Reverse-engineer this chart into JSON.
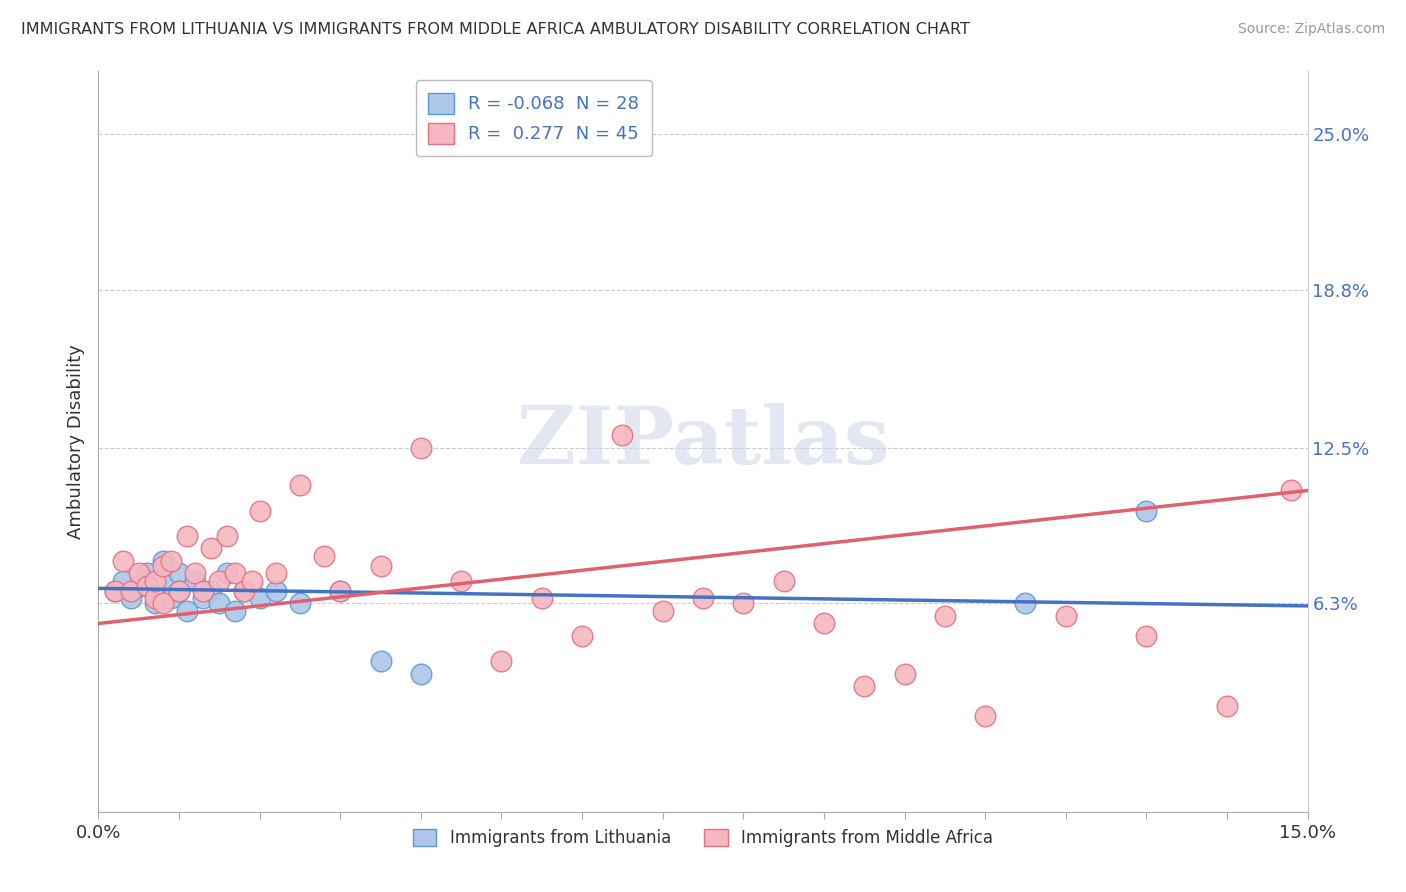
{
  "title": "IMMIGRANTS FROM LITHUANIA VS IMMIGRANTS FROM MIDDLE AFRICA AMBULATORY DISABILITY CORRELATION CHART",
  "source": "Source: ZipAtlas.com",
  "ylabel": "Ambulatory Disability",
  "xlim": [
    0.0,
    0.15
  ],
  "ylim": [
    -0.02,
    0.275
  ],
  "ytick_labels_right": [
    "6.3%",
    "12.5%",
    "18.8%",
    "25.0%"
  ],
  "ytick_positions_right": [
    0.063,
    0.125,
    0.188,
    0.25
  ],
  "legend_label1": "Immigrants from Lithuania",
  "legend_label2": "Immigrants from Middle Africa",
  "blue_fill_color": "#aec6e8",
  "blue_edge_color": "#5b9bd5",
  "pink_fill_color": "#f5b8c0",
  "pink_edge_color": "#e87080",
  "blue_line_color": "#4472c4",
  "pink_line_color": "#e06070",
  "blue_scatter_x": [
    0.002,
    0.003,
    0.004,
    0.005,
    0.006,
    0.007,
    0.007,
    0.008,
    0.008,
    0.009,
    0.01,
    0.01,
    0.011,
    0.012,
    0.013,
    0.014,
    0.015,
    0.016,
    0.017,
    0.018,
    0.02,
    0.022,
    0.025,
    0.03,
    0.035,
    0.04,
    0.115,
    0.13
  ],
  "blue_scatter_y": [
    0.068,
    0.072,
    0.065,
    0.07,
    0.075,
    0.068,
    0.063,
    0.072,
    0.08,
    0.065,
    0.075,
    0.068,
    0.06,
    0.072,
    0.065,
    0.068,
    0.063,
    0.075,
    0.06,
    0.068,
    0.065,
    0.068,
    0.063,
    0.068,
    0.04,
    0.035,
    0.063,
    0.1
  ],
  "pink_scatter_x": [
    0.002,
    0.003,
    0.004,
    0.005,
    0.006,
    0.007,
    0.007,
    0.008,
    0.008,
    0.009,
    0.01,
    0.011,
    0.012,
    0.013,
    0.014,
    0.015,
    0.016,
    0.017,
    0.018,
    0.019,
    0.02,
    0.022,
    0.025,
    0.028,
    0.03,
    0.035,
    0.04,
    0.045,
    0.05,
    0.055,
    0.06,
    0.065,
    0.07,
    0.075,
    0.08,
    0.085,
    0.09,
    0.095,
    0.1,
    0.105,
    0.11,
    0.12,
    0.13,
    0.14,
    0.148
  ],
  "pink_scatter_y": [
    0.068,
    0.08,
    0.068,
    0.075,
    0.07,
    0.065,
    0.072,
    0.078,
    0.063,
    0.08,
    0.068,
    0.09,
    0.075,
    0.068,
    0.085,
    0.072,
    0.09,
    0.075,
    0.068,
    0.072,
    0.1,
    0.075,
    0.11,
    0.082,
    0.068,
    0.078,
    0.125,
    0.072,
    0.04,
    0.065,
    0.05,
    0.13,
    0.06,
    0.065,
    0.063,
    0.072,
    0.055,
    0.03,
    0.035,
    0.058,
    0.018,
    0.058,
    0.05,
    0.022,
    0.108
  ],
  "blue_trendline_x": [
    0.0,
    0.15
  ],
  "blue_trendline_y": [
    0.069,
    0.062
  ],
  "pink_trendline_x": [
    0.0,
    0.15
  ],
  "pink_trendline_y": [
    0.055,
    0.108
  ],
  "watermark_text": "ZIPatlas",
  "background_color": "#ffffff",
  "grid_color": "#cccccc",
  "legend_r1": "R = -0.068",
  "legend_n1": "N = 28",
  "legend_r2": "R =  0.277",
  "legend_n2": "N = 45"
}
